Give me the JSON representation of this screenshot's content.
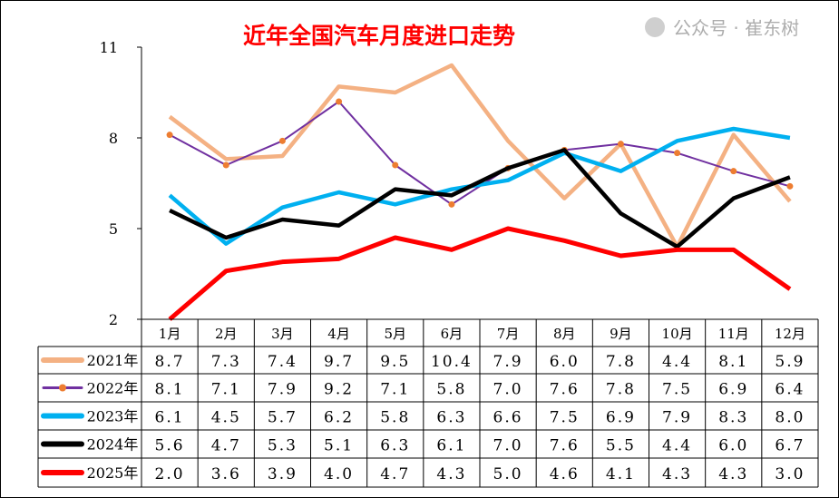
{
  "chart_data": {
    "type": "line",
    "title": "近年全国汽车月度进口走势",
    "categories": [
      "1月",
      "2月",
      "3月",
      "4月",
      "5月",
      "6月",
      "7月",
      "8月",
      "9月",
      "10月",
      "11月",
      "12月"
    ],
    "ylim": [
      2,
      11
    ],
    "yticks": [
      "2",
      "5",
      "8",
      "11"
    ],
    "grid": false,
    "legend": "data-table-left",
    "series": [
      {
        "name": "2021年",
        "color": "#F4B183",
        "marker": false,
        "values": [
          8.7,
          7.3,
          7.4,
          9.7,
          9.5,
          10.4,
          7.9,
          6.0,
          7.8,
          4.4,
          8.1,
          5.9
        ]
      },
      {
        "name": "2022年",
        "color": "#7030A0",
        "marker": true,
        "marker_color": "#ED7D31",
        "values": [
          8.1,
          7.1,
          7.9,
          9.2,
          7.1,
          5.8,
          7.0,
          7.6,
          7.8,
          7.5,
          6.9,
          6.4
        ]
      },
      {
        "name": "2023年",
        "color": "#00B0F0",
        "marker": false,
        "values": [
          6.1,
          4.5,
          5.7,
          6.2,
          5.8,
          6.3,
          6.6,
          7.5,
          6.9,
          7.9,
          8.3,
          8.0
        ]
      },
      {
        "name": "2024年",
        "color": "#000000",
        "marker": false,
        "values": [
          5.6,
          4.7,
          5.3,
          5.1,
          6.3,
          6.1,
          7.0,
          7.6,
          5.5,
          4.4,
          6.0,
          6.7
        ]
      },
      {
        "name": "2025年",
        "color": "#FF0000",
        "marker": false,
        "values": [
          2.0,
          3.6,
          3.9,
          4.0,
          4.7,
          4.3,
          5.0,
          4.6,
          4.1,
          4.3,
          4.3,
          3.0
        ]
      }
    ],
    "table_labels": [
      [
        "8.7",
        "7.3",
        "7.4",
        "9.7",
        "9.5",
        "10.4",
        "7.9",
        "6.0",
        "7.8",
        "4.4",
        "8.1",
        "5.9"
      ],
      [
        "8.1",
        "7.1",
        "7.9",
        "9.2",
        "7.1",
        "5.8",
        "7.0",
        "7.6",
        "7.8",
        "7.5",
        "6.9",
        "6.4"
      ],
      [
        "6.1",
        "4.5",
        "5.7",
        "6.2",
        "5.8",
        "6.3",
        "6.6",
        "7.5",
        "6.9",
        "7.9",
        "8.3",
        "8.0"
      ],
      [
        "5.6",
        "4.7",
        "5.3",
        "5.1",
        "6.3",
        "6.1",
        "7.0",
        "7.6",
        "5.5",
        "4.4",
        "6.0",
        "6.7"
      ],
      [
        "2.0",
        "3.6",
        "3.9",
        "4.0",
        "4.7",
        "4.3",
        "5.0",
        "4.6",
        "4.1",
        "4.3",
        "4.3",
        "3.0"
      ]
    ]
  },
  "watermark": "公众号 · 崔东树",
  "colors": {
    "title": "#FF0000",
    "axis": "#000000"
  }
}
